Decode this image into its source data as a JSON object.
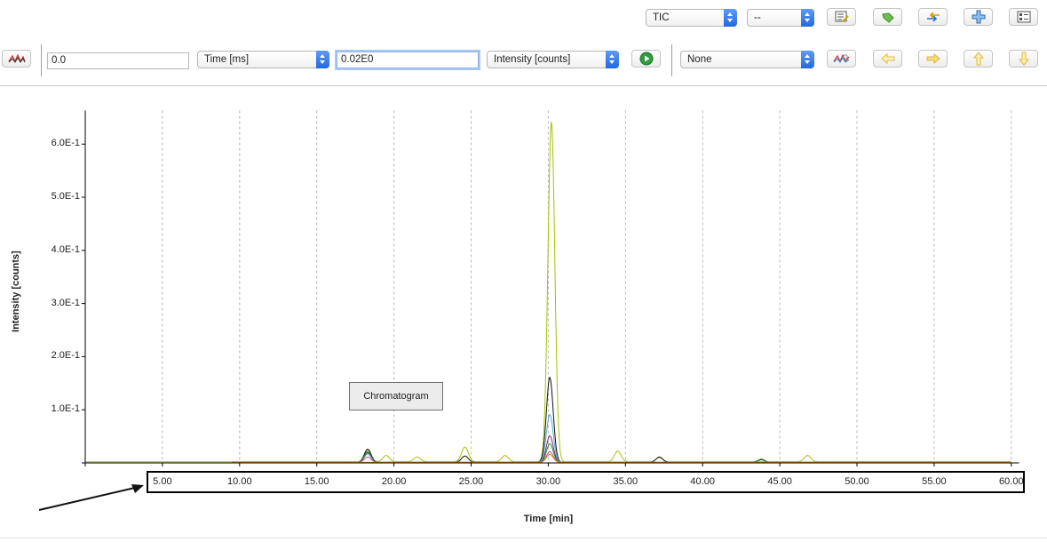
{
  "toolbar_top": {
    "signal_select": "TIC",
    "secondary_select": "--",
    "icons": [
      "edit-list-icon",
      "tag-icon",
      "swap-icon",
      "add-icon",
      "settings-list-icon"
    ]
  },
  "toolbar_main": {
    "x_value": "0.0",
    "x_unit": "Time [ms]",
    "y_value": "0.02E0",
    "y_unit": "Intensity [counts]",
    "filter_select": "None"
  },
  "chart_data": {
    "type": "line",
    "xlabel": "Time [min]",
    "ylabel": "Intensity [counts]",
    "xlim": [
      0,
      60.5
    ],
    "ylim": [
      0,
      0.66
    ],
    "x_ticks": [
      "5.00",
      "10.00",
      "15.00",
      "20.00",
      "25.00",
      "30.00",
      "35.00",
      "40.00",
      "45.00",
      "50.00",
      "55.00",
      "60.00"
    ],
    "y_ticks": [
      "1.0E-1",
      "2.0E-1",
      "3.0E-1",
      "4.0E-1",
      "5.0E-1",
      "6.0E-1"
    ],
    "y_tick_values": [
      0.1,
      0.2,
      0.3,
      0.4,
      0.5,
      0.6
    ],
    "x_tick_values": [
      5,
      10,
      15,
      20,
      25,
      30,
      35,
      40,
      45,
      50,
      55,
      60
    ],
    "grid_x": true,
    "legend": "Chromatogram",
    "series": [
      {
        "color": "#a6c200",
        "peaks": [
          [
            18.3,
            0.022
          ],
          [
            19.5,
            0.012
          ],
          [
            21.5,
            0.009
          ],
          [
            24.6,
            0.028
          ],
          [
            27.2,
            0.012
          ],
          [
            30.2,
            0.64
          ],
          [
            34.5,
            0.02
          ],
          [
            37.2,
            0.008
          ],
          [
            46.8,
            0.012
          ]
        ]
      },
      {
        "color": "#111111",
        "peaks": [
          [
            18.3,
            0.025
          ],
          [
            24.6,
            0.012
          ],
          [
            30.1,
            0.16
          ],
          [
            37.2,
            0.01
          ],
          [
            43.8,
            0.005
          ]
        ]
      },
      {
        "color": "#7a2a7a",
        "peaks": [
          [
            18.3,
            0.018
          ],
          [
            30.1,
            0.05
          ]
        ]
      },
      {
        "color": "#5aa5d8",
        "peaks": [
          [
            18.3,
            0.016
          ],
          [
            30.1,
            0.09
          ]
        ]
      },
      {
        "color": "#1e8a1e",
        "peaks": [
          [
            18.3,
            0.02
          ],
          [
            30.1,
            0.035
          ],
          [
            43.8,
            0.006
          ]
        ]
      },
      {
        "color": "#d24a8a",
        "peaks": [
          [
            18.3,
            0.01
          ],
          [
            30.1,
            0.02
          ]
        ]
      },
      {
        "color": "#d68a1a",
        "peaks": [
          [
            30.1,
            0.015
          ]
        ]
      }
    ]
  }
}
